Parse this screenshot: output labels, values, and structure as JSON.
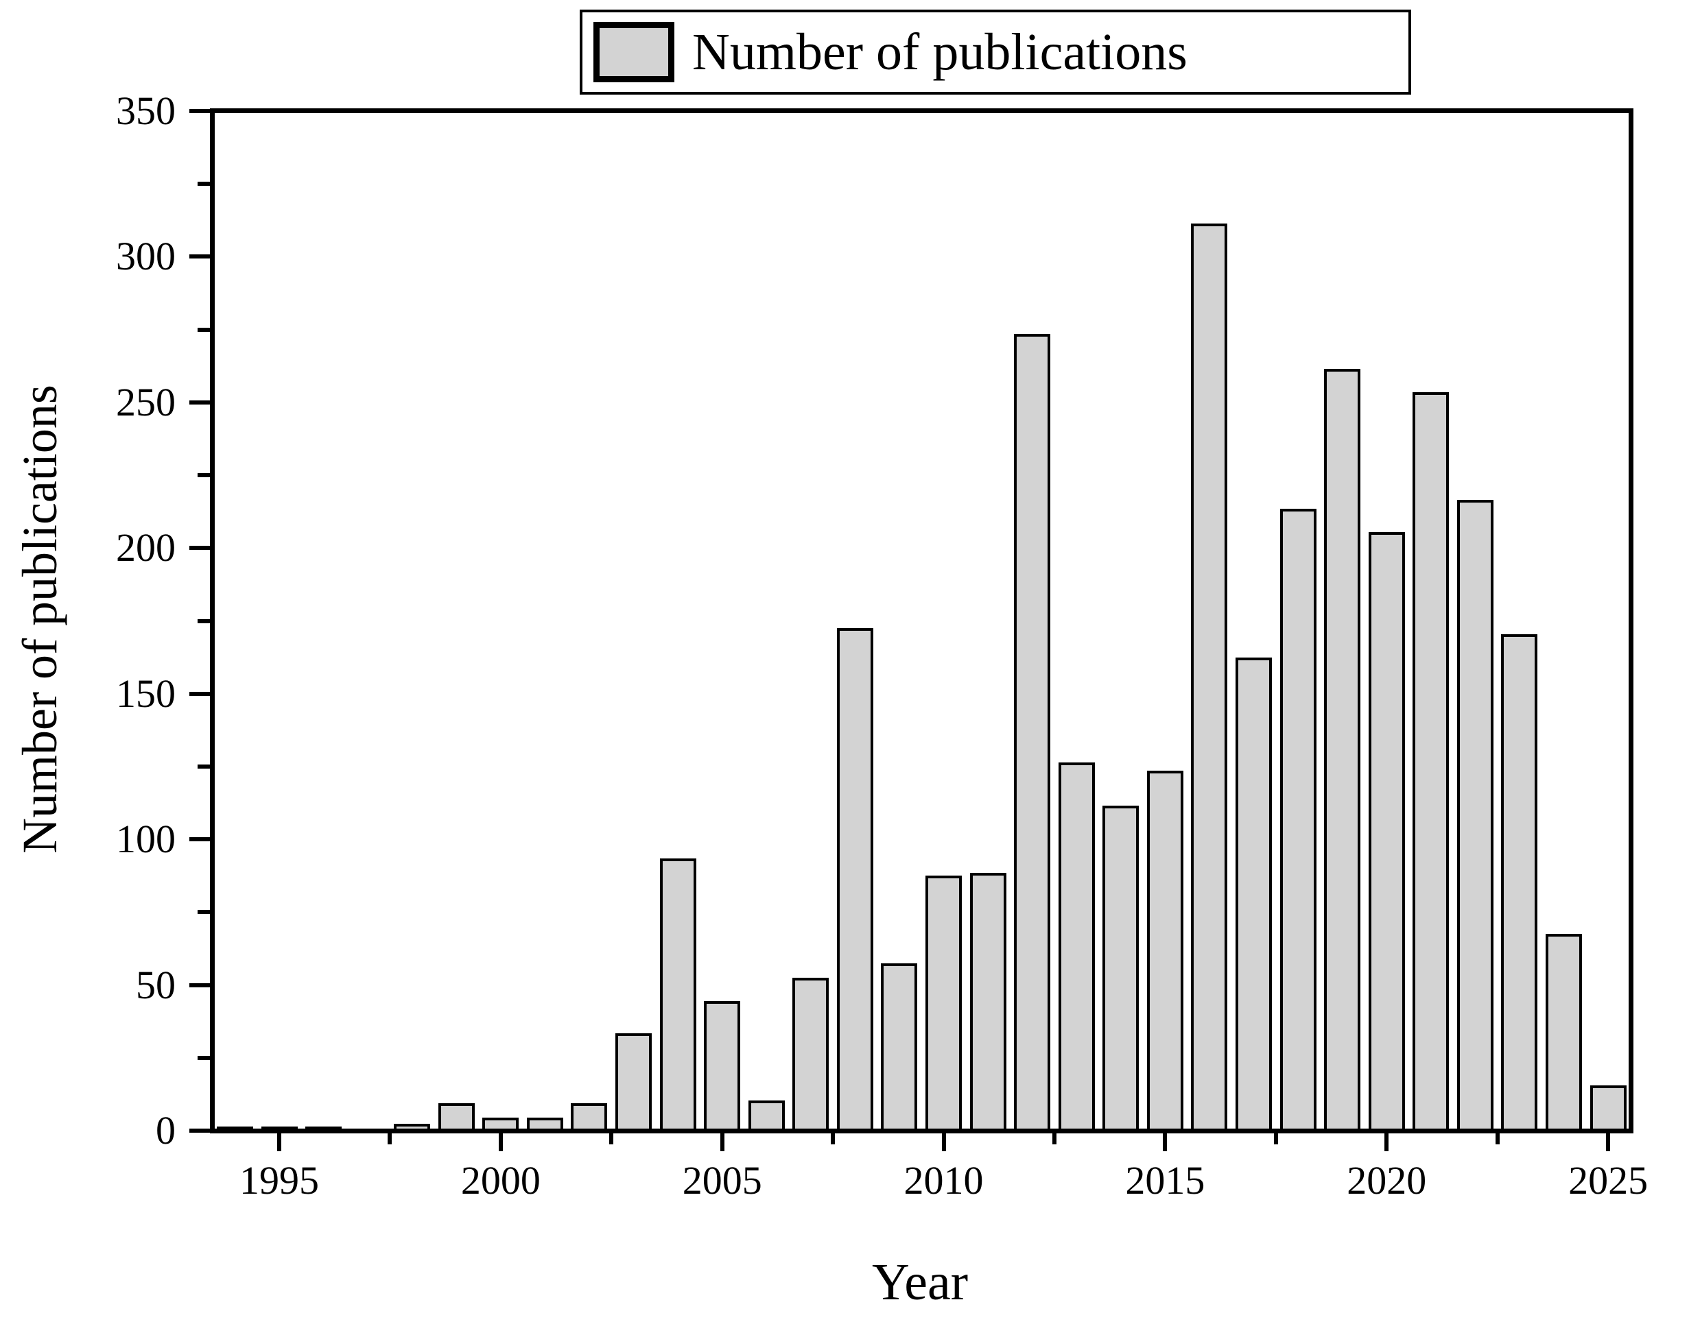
{
  "figure": {
    "legend": {
      "label": "Number of publications"
    },
    "x_axis": {
      "title": "Year",
      "tick_labels": [
        "1995",
        "2000",
        "2005",
        "2010",
        "2015",
        "2020",
        "2025"
      ]
    },
    "y_axis": {
      "title": "Number of publications",
      "tick_labels": [
        "0",
        "50",
        "100",
        "150",
        "200",
        "250",
        "300",
        "350"
      ]
    }
  },
  "colors": {
    "bar_fill": "#d3d3d3",
    "stroke": "#000000",
    "background": "#ffffff"
  },
  "chart_data": {
    "type": "bar",
    "title": "",
    "xlabel": "Year",
    "ylabel": "Number of publications",
    "legend": [
      "Number of publications"
    ],
    "legend_position": "top-center",
    "grid": false,
    "categories": [
      1994,
      1995,
      1996,
      1997,
      1998,
      1999,
      2000,
      2001,
      2002,
      2003,
      2004,
      2005,
      2006,
      2007,
      2008,
      2009,
      2010,
      2011,
      2012,
      2013,
      2014,
      2015,
      2016,
      2017,
      2018,
      2019,
      2020,
      2021,
      2022,
      2023,
      2024,
      2025
    ],
    "values": [
      1,
      1,
      1,
      0,
      2,
      9,
      4,
      4,
      9,
      33,
      93,
      44,
      10,
      52,
      172,
      57,
      87,
      88,
      273,
      126,
      111,
      123,
      311,
      162,
      213,
      261,
      205,
      253,
      216,
      170,
      67,
      15
    ],
    "ylim": [
      0,
      350
    ],
    "y_major_tick_step": 50,
    "y_minor_tick_step": 25,
    "x_major_ticks": [
      1995,
      2000,
      2005,
      2010,
      2015,
      2020,
      2025
    ],
    "x_minor_ticks": [
      1997.5,
      2002.5,
      2007.5,
      2012.5,
      2017.5,
      2022.5
    ]
  }
}
